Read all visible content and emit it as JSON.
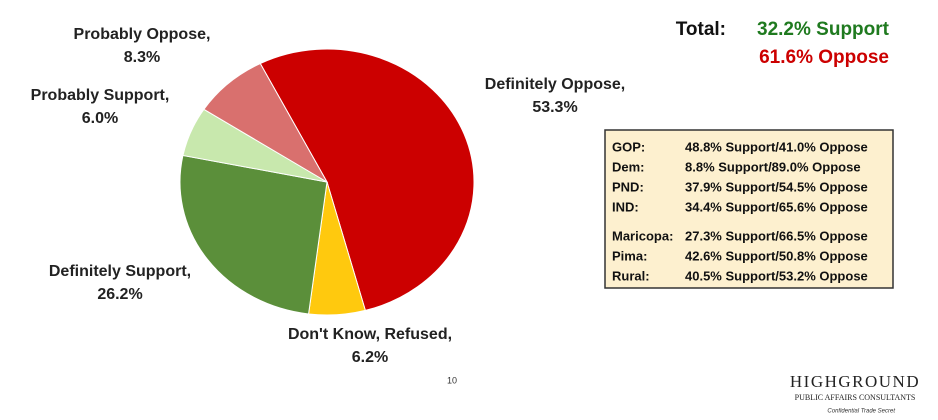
{
  "chart_data": {
    "type": "pie",
    "categories": [
      "Definitely Oppose,",
      "Don't Know, Refused,",
      "Definitely Support,",
      "Probably Support,",
      "Probably Oppose,"
    ],
    "values": [
      53.3,
      6.2,
      26.2,
      6.0,
      8.3
    ],
    "value_labels": [
      "53.3%",
      "6.2%",
      "26.2%",
      "6.0%",
      "8.3%"
    ],
    "colors": [
      "#cc0000",
      "#ffc90e",
      "#5b8f3a",
      "#c8e8ad",
      "#d9706e"
    ]
  },
  "total": {
    "label": "Total:",
    "support": "32.2% Support",
    "oppose": "61.6% Oppose"
  },
  "breakdown": {
    "rows": [
      [
        "GOP:",
        "48.8% Support/41.0% Oppose"
      ],
      [
        "Dem:",
        "8.8% Support/89.0% Oppose"
      ],
      [
        "PND:",
        "37.9% Support/54.5% Oppose"
      ],
      [
        "IND:",
        "34.4% Support/65.6% Oppose"
      ],
      [
        "Maricopa:",
        "27.3% Support/66.5% Oppose"
      ],
      [
        "Pima:",
        "42.6% Support/50.8% Oppose"
      ],
      [
        "Rural:",
        "40.5% Support/53.2% Oppose"
      ]
    ]
  },
  "footer": {
    "page": "10",
    "logo": "HIGHGROUND",
    "logo_sub": "PUBLIC AFFAIRS CONSULTANTS",
    "confidential": "Confidential Trade Secret"
  }
}
